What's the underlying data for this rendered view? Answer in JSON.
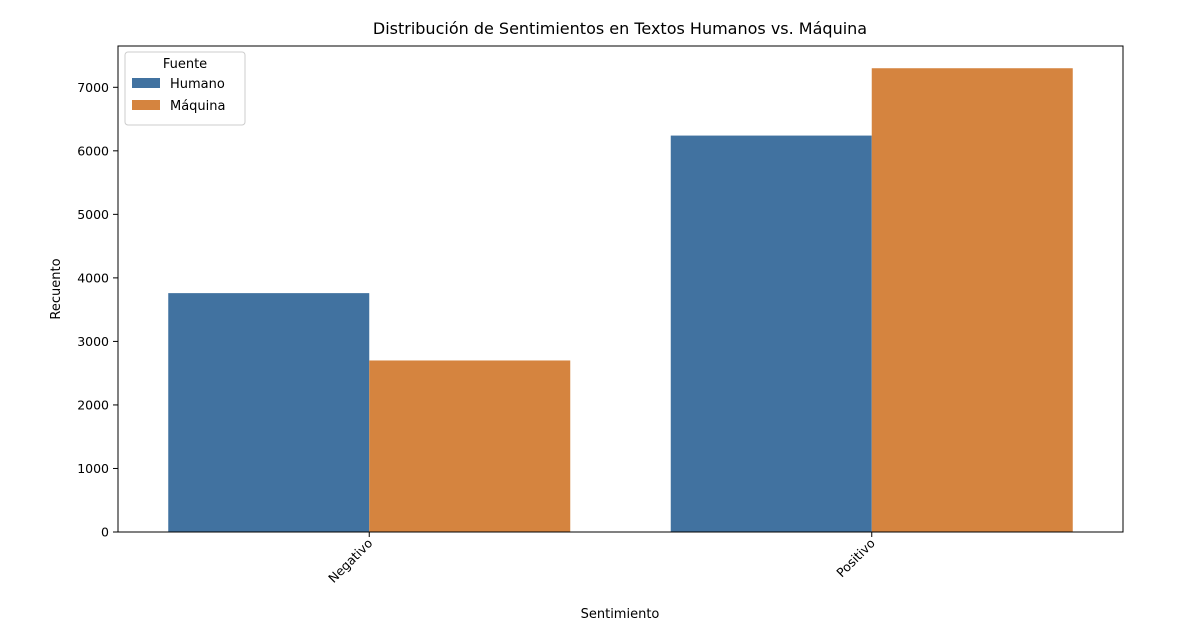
{
  "chart_data": {
    "type": "bar",
    "title": "Distribución de Sentimientos en Textos Humanos vs. Máquina",
    "xlabel": "Sentimiento",
    "ylabel": "Recuento",
    "categories": [
      "Negativo",
      "Positivo"
    ],
    "series": [
      {
        "name": "Humano",
        "values": [
          3760,
          6240
        ]
      },
      {
        "name": "Máquina",
        "values": [
          2700,
          7300
        ]
      }
    ],
    "ylim": [
      0,
      7650
    ],
    "yticks": [
      0,
      1000,
      2000,
      3000,
      4000,
      5000,
      6000,
      7000
    ],
    "grid": false,
    "legend": {
      "title": "Fuente",
      "placement": "top-left"
    },
    "colors": {
      "Humano": "#4172a0",
      "Máquina": "#d5843f"
    },
    "xtick_rotation": 45
  }
}
